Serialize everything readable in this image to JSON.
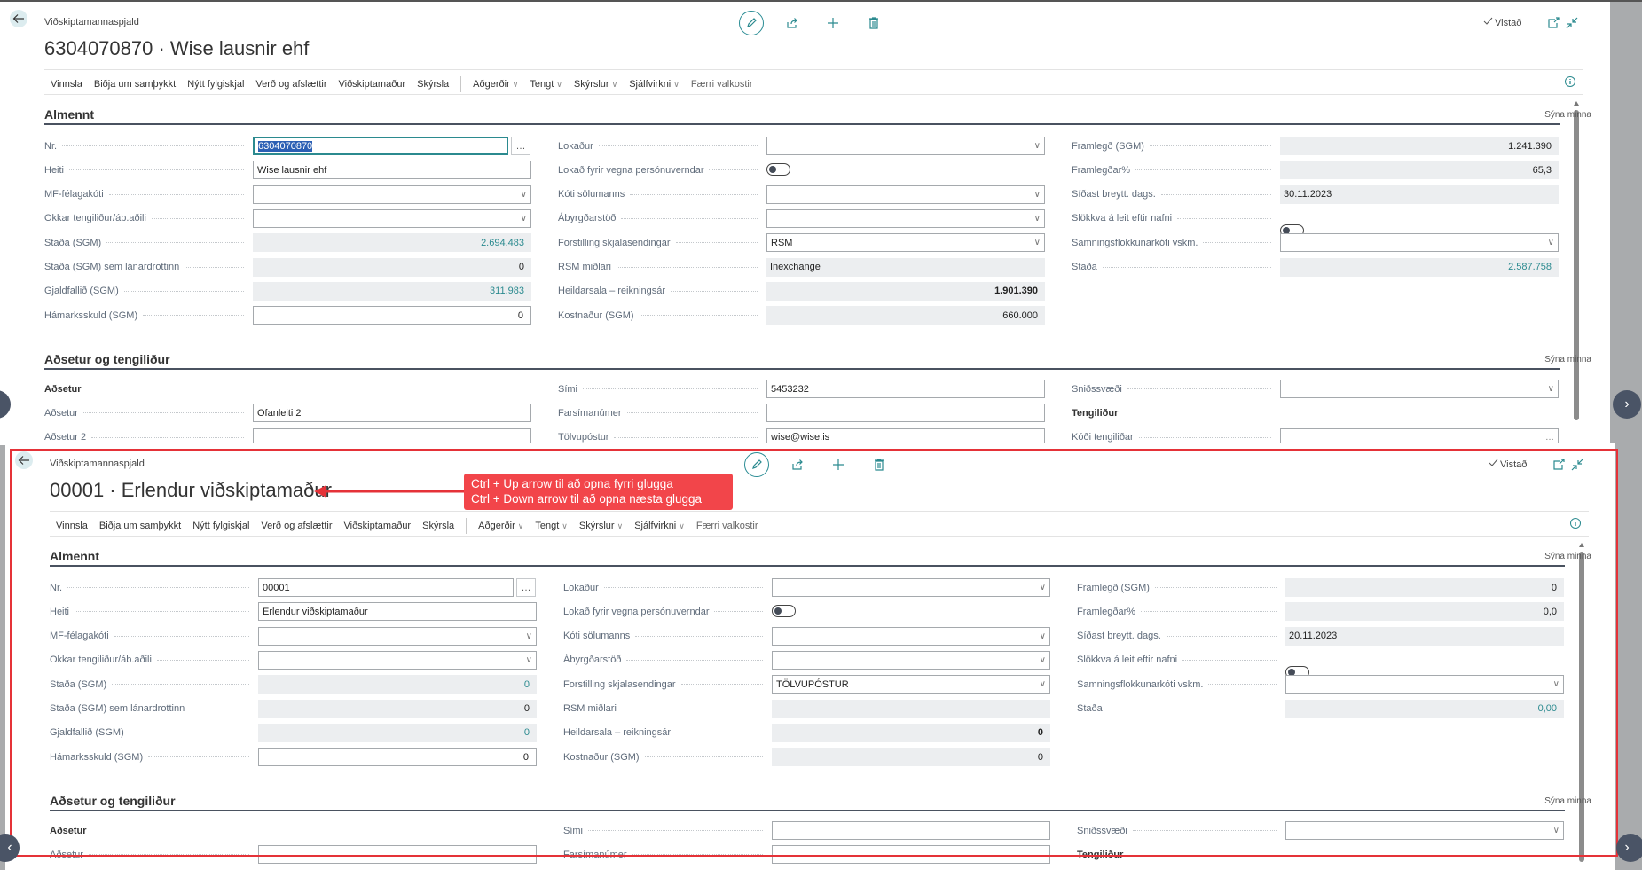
{
  "panels": [
    {
      "breadcrumb": "Viðskiptamannaspjald",
      "title": "6304070870 · Wise lausnir ehf",
      "saved_label": "Vistað",
      "toolbar": [
        {
          "label": "Vinnsla"
        },
        {
          "label": "Biðja um samþykkt"
        },
        {
          "label": "Nýtt fylgiskjal"
        },
        {
          "label": "Verð og afslættir"
        },
        {
          "label": "Viðskiptamaður"
        },
        {
          "label": "Skýrsla",
          "separator_after": true
        },
        {
          "label": "Aðgerðir",
          "dropdown": true
        },
        {
          "label": "Tengt",
          "dropdown": true
        },
        {
          "label": "Skýrslur",
          "dropdown": true
        },
        {
          "label": "Sjálfvirkni",
          "dropdown": true
        },
        {
          "label": "Færri valkostir",
          "muted": true
        }
      ],
      "sections": [
        {
          "title": "Almennt",
          "show_less": "Sýna minna",
          "columns": [
            [
              {
                "label": "Nr.",
                "type": "lookup",
                "value": "6304070870",
                "selected": true
              },
              {
                "label": "Heiti",
                "type": "text",
                "value": "Wise lausnir ehf"
              },
              {
                "label": "MF-félagakóti",
                "type": "dropdown",
                "value": ""
              },
              {
                "label": "Okkar tengiliður/áb.aðili",
                "type": "dropdown",
                "value": ""
              },
              {
                "label": "Staða (SGM)",
                "type": "readonly",
                "value": "2.694.483",
                "align": "right",
                "style": "teal"
              },
              {
                "label": "Staða (SGM) sem lánardrottinn",
                "type": "readonly",
                "value": "0",
                "align": "right"
              },
              {
                "label": "Gjaldfallið (SGM)",
                "type": "readonly",
                "value": "311.983",
                "align": "right",
                "style": "teal"
              },
              {
                "label": "Hámarksskuld (SGM)",
                "type": "text",
                "value": "0",
                "align": "right"
              }
            ],
            [
              {
                "label": "Lokaður",
                "type": "dropdown",
                "value": ""
              },
              {
                "label": "Lokað fyrir vegna persónuverndar",
                "type": "toggle",
                "value": false
              },
              {
                "label": "Kóti sölumanns",
                "type": "dropdown",
                "value": ""
              },
              {
                "label": "Ábyrgðarstöð",
                "type": "dropdown",
                "value": ""
              },
              {
                "label": "Forstilling skjalasendingar",
                "type": "dropdown",
                "value": "RSM"
              },
              {
                "label": "RSM miðlari",
                "type": "readonly",
                "value": "Inexchange"
              },
              {
                "label": "Heildarsala – reikningsár",
                "type": "readonly",
                "value": "1.901.390",
                "align": "right",
                "style": "bold"
              },
              {
                "label": "Kostnaður (SGM)",
                "type": "readonly",
                "value": "660.000",
                "align": "right"
              }
            ],
            [
              {
                "label": "Framlegð (SGM)",
                "type": "readonly",
                "value": "1.241.390",
                "align": "right"
              },
              {
                "label": "Framlegðar%",
                "type": "readonly",
                "value": "65,3",
                "align": "right"
              },
              {
                "label": "Síðast breytt. dags.",
                "type": "readonly",
                "value": "30.11.2023"
              },
              {
                "label": "Slökkva á leit eftir nafni",
                "type": "toggle",
                "value": false
              },
              {
                "label": "Samningsflokkunarkóti vskm.",
                "type": "dropdown",
                "value": ""
              },
              {
                "label": "Staða",
                "type": "readonly",
                "value": "2.587.758",
                "align": "right",
                "style": "teal"
              }
            ]
          ]
        },
        {
          "title": "Aðsetur og tengiliður",
          "show_less": "Sýna minna",
          "columns": [
            [
              {
                "label": "Aðsetur",
                "type": "subheading"
              },
              {
                "label": "Aðsetur",
                "type": "text",
                "value": "Ofanleiti 2"
              },
              {
                "label": "Aðsetur 2",
                "type": "text",
                "value": ""
              }
            ],
            [
              {
                "label": "Sími",
                "type": "text",
                "value": "5453232"
              },
              {
                "label": "Farsímanúmer",
                "type": "text",
                "value": ""
              },
              {
                "label": "Tölvupóstur",
                "type": "text",
                "value": "wise@wise.is"
              }
            ],
            [
              {
                "label": "Sniðssvæði",
                "type": "dropdown",
                "value": ""
              },
              {
                "label": "Tengiliður",
                "type": "subheading"
              },
              {
                "label": "Kóði tengiliðar",
                "type": "assist",
                "value": ""
              }
            ]
          ]
        }
      ]
    },
    {
      "breadcrumb": "Viðskiptamannaspjald",
      "title": "00001 · Erlendur viðskiptamaður",
      "saved_label": "Vistað",
      "toolbar": [
        {
          "label": "Vinnsla"
        },
        {
          "label": "Biðja um samþykkt"
        },
        {
          "label": "Nýtt fylgiskjal"
        },
        {
          "label": "Verð og afslættir"
        },
        {
          "label": "Viðskiptamaður"
        },
        {
          "label": "Skýrsla",
          "separator_after": true
        },
        {
          "label": "Aðgerðir",
          "dropdown": true
        },
        {
          "label": "Tengt",
          "dropdown": true
        },
        {
          "label": "Skýrslur",
          "dropdown": true
        },
        {
          "label": "Sjálfvirkni",
          "dropdown": true
        },
        {
          "label": "Færri valkostir",
          "muted": true
        }
      ],
      "sections": [
        {
          "title": "Almennt",
          "show_less": "Sýna minna",
          "columns": [
            [
              {
                "label": "Nr.",
                "type": "lookup",
                "value": "00001"
              },
              {
                "label": "Heiti",
                "type": "text",
                "value": "Erlendur viðskiptamaður"
              },
              {
                "label": "MF-félagakóti",
                "type": "dropdown",
                "value": ""
              },
              {
                "label": "Okkar tengiliður/áb.aðili",
                "type": "dropdown",
                "value": ""
              },
              {
                "label": "Staða (SGM)",
                "type": "readonly",
                "value": "0",
                "align": "right",
                "style": "teal"
              },
              {
                "label": "Staða (SGM) sem lánardrottinn",
                "type": "readonly",
                "value": "0",
                "align": "right"
              },
              {
                "label": "Gjaldfallið (SGM)",
                "type": "readonly",
                "value": "0",
                "align": "right",
                "style": "teal"
              },
              {
                "label": "Hámarksskuld (SGM)",
                "type": "text",
                "value": "0",
                "align": "right"
              }
            ],
            [
              {
                "label": "Lokaður",
                "type": "dropdown",
                "value": ""
              },
              {
                "label": "Lokað fyrir vegna persónuverndar",
                "type": "toggle",
                "value": false
              },
              {
                "label": "Kóti sölumanns",
                "type": "dropdown",
                "value": ""
              },
              {
                "label": "Ábyrgðarstöð",
                "type": "dropdown",
                "value": ""
              },
              {
                "label": "Forstilling skjalasendingar",
                "type": "dropdown",
                "value": "TÖLVUPÓSTUR"
              },
              {
                "label": "RSM miðlari",
                "type": "readonly",
                "value": ""
              },
              {
                "label": "Heildarsala – reikningsár",
                "type": "readonly",
                "value": "0",
                "align": "right",
                "style": "bold"
              },
              {
                "label": "Kostnaður (SGM)",
                "type": "readonly",
                "value": "0",
                "align": "right"
              }
            ],
            [
              {
                "label": "Framlegð (SGM)",
                "type": "readonly",
                "value": "0",
                "align": "right"
              },
              {
                "label": "Framlegðar%",
                "type": "readonly",
                "value": "0,0",
                "align": "right"
              },
              {
                "label": "Síðast breytt. dags.",
                "type": "readonly",
                "value": "20.11.2023"
              },
              {
                "label": "Slökkva á leit eftir nafni",
                "type": "toggle",
                "value": false
              },
              {
                "label": "Samningsflokkunarkóti vskm.",
                "type": "dropdown",
                "value": ""
              },
              {
                "label": "Staða",
                "type": "readonly",
                "value": "0,00",
                "align": "right",
                "style": "teal"
              }
            ]
          ]
        },
        {
          "title": "Aðsetur og tengiliður",
          "show_less": "Sýna minna",
          "columns": [
            [
              {
                "label": "Aðsetur",
                "type": "subheading"
              },
              {
                "label": "Aðsetur",
                "type": "text",
                "value": ""
              }
            ],
            [
              {
                "label": "Sími",
                "type": "text",
                "value": ""
              },
              {
                "label": "Farsímanúmer",
                "type": "text",
                "value": ""
              }
            ],
            [
              {
                "label": "Sniðssvæði",
                "type": "dropdown",
                "value": ""
              },
              {
                "label": "Tengiliður",
                "type": "subheading"
              }
            ]
          ]
        }
      ]
    }
  ],
  "callout": {
    "line1": "Ctrl + Up arrow til að opna fyrri glugga",
    "line2": "Ctrl + Down arrow til að opna næsta glugga",
    "color": "#f2454a"
  },
  "colors": {
    "accent": "#2b8a8f",
    "highlight_box": "#e53238",
    "nav_button": "#4a5466"
  },
  "icons": {
    "back": "arrow-left-icon",
    "edit": "pencil-icon",
    "share": "share-icon",
    "new": "plus-icon",
    "delete": "trash-icon",
    "saved": "check-icon",
    "open_new": "open-in-new-window-icon",
    "collapse": "collapse-icon",
    "info": "info-icon"
  }
}
